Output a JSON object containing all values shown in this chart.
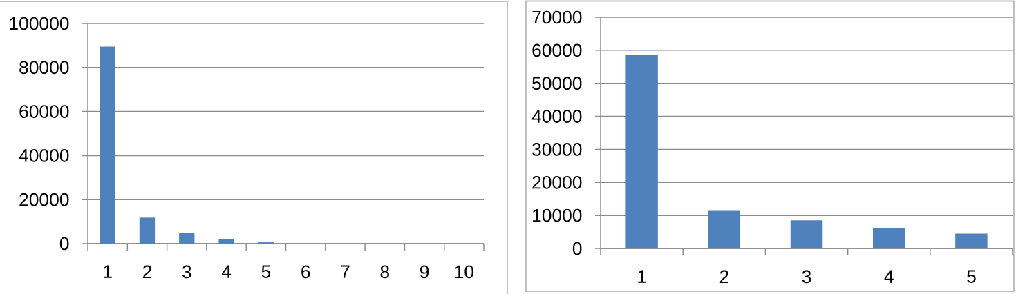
{
  "chart_data": [
    {
      "type": "bar",
      "categories": [
        "1",
        "2",
        "3",
        "4",
        "5",
        "6",
        "7",
        "8",
        "9",
        "10"
      ],
      "values": [
        89500,
        11800,
        4700,
        2000,
        600,
        0,
        0,
        0,
        0,
        0
      ],
      "color": "#4f81bd",
      "ylim": [
        0,
        100000
      ],
      "yticks": [
        0,
        20000,
        40000,
        60000,
        80000,
        100000
      ],
      "grid": "y"
    },
    {
      "type": "bar",
      "categories": [
        "1",
        "2",
        "3",
        "4",
        "5"
      ],
      "values": [
        58600,
        11400,
        8500,
        6200,
        4500
      ],
      "color": "#4f81bd",
      "ylim": [
        0,
        70000
      ],
      "yticks": [
        0,
        10000,
        20000,
        30000,
        40000,
        50000,
        60000,
        70000
      ],
      "grid": "y"
    }
  ]
}
